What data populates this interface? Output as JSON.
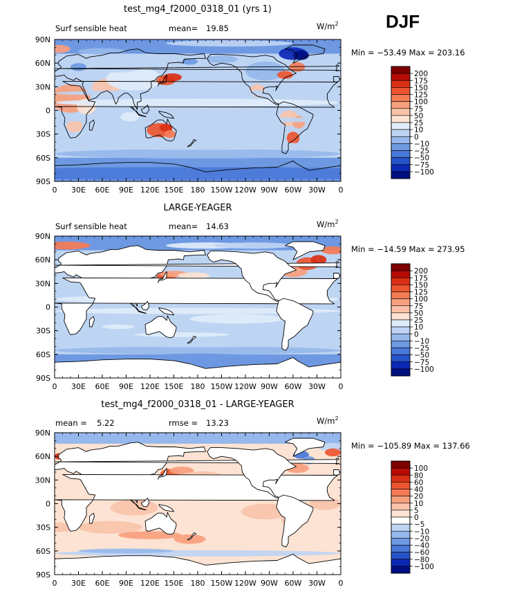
{
  "season": "DJF",
  "chart_data": [
    {
      "type": "heatmap",
      "title": "test_mg4_f2000_0318_01 (yrs 1)",
      "left_label": "Surf sensible heat",
      "stat_label": "mean=",
      "stat_value": "19.85",
      "units": "W/m",
      "units_sup": "2",
      "minmax": "Min = −53.49 Max = 203.16",
      "ocean_only": false,
      "levels": [
        "200",
        "175",
        "150",
        "125",
        "100",
        "75",
        "50",
        "25",
        "10",
        "0",
        "−10",
        "−25",
        "−50",
        "−75",
        "−100"
      ],
      "colors": [
        "#7f0000",
        "#b50c04",
        "#d93014",
        "#ed5530",
        "#f57b55",
        "#f7a07e",
        "#f9c3aa",
        "#fce3d3",
        "#e0ecfa",
        "#bed4f3",
        "#96b8ec",
        "#6e99e2",
        "#4a78d8",
        "#2653c9",
        "#0c27b4",
        "#000f80"
      ],
      "xticks": [
        "0",
        "30E",
        "60E",
        "90E",
        "120E",
        "150E",
        "180",
        "150W",
        "120W",
        "90W",
        "60W",
        "30W",
        "0"
      ],
      "yticks": [
        "90N",
        "60N",
        "30N",
        "0",
        "30S",
        "60S",
        "90S"
      ]
    },
    {
      "type": "heatmap",
      "title": "LARGE-YEAGER",
      "left_label": "Surf sensible heat",
      "stat_label": "mean=",
      "stat_value": "14.63",
      "units": "W/m",
      "units_sup": "2",
      "minmax": "Min = −14.59 Max = 273.95",
      "ocean_only": true,
      "levels": [
        "200",
        "175",
        "150",
        "125",
        "100",
        "75",
        "50",
        "25",
        "10",
        "0",
        "−10",
        "−25",
        "−50",
        "−75",
        "−100"
      ],
      "colors": [
        "#7f0000",
        "#b50c04",
        "#d93014",
        "#ed5530",
        "#f57b55",
        "#f7a07e",
        "#f9c3aa",
        "#fce3d3",
        "#e0ecfa",
        "#bed4f3",
        "#96b8ec",
        "#6e99e2",
        "#4a78d8",
        "#2653c9",
        "#0c27b4",
        "#000f80"
      ],
      "xticks": [
        "0",
        "30E",
        "60E",
        "90E",
        "120E",
        "150E",
        "180",
        "150W",
        "120W",
        "90W",
        "60W",
        "30W",
        "0"
      ],
      "yticks": [
        "90N",
        "60N",
        "30N",
        "0",
        "30S",
        "60S",
        "90S"
      ]
    },
    {
      "type": "heatmap",
      "title": "test_mg4_f2000_0318_01 - LARGE-YEAGER",
      "left_label": "mean =",
      "left_value": "5.22",
      "stat_label": "rmse =",
      "stat_value": "13.23",
      "units": "W/m",
      "units_sup": "2",
      "minmax": "Min = −105.89 Max = 137.66",
      "ocean_only": true,
      "levels": [
        "100",
        "80",
        "60",
        "40",
        "20",
        "10",
        "5",
        "0",
        "−5",
        "−10",
        "−20",
        "−40",
        "−60",
        "−80",
        "−100"
      ],
      "colors": [
        "#7f0000",
        "#b50c04",
        "#d93014",
        "#ed5530",
        "#f57b55",
        "#f7a07e",
        "#f9c3aa",
        "#fce3d3",
        "#ffffff",
        "#bed4f3",
        "#96b8ec",
        "#6e99e2",
        "#4a78d8",
        "#2653c9",
        "#0c27b4",
        "#000f80"
      ],
      "xticks": [
        "0",
        "30E",
        "60E",
        "90E",
        "120E",
        "150E",
        "180",
        "150W",
        "120W",
        "90W",
        "60W",
        "30W",
        "0"
      ],
      "yticks": [
        "90N",
        "60N",
        "30N",
        "0",
        "30S",
        "60S",
        "90S"
      ]
    }
  ]
}
